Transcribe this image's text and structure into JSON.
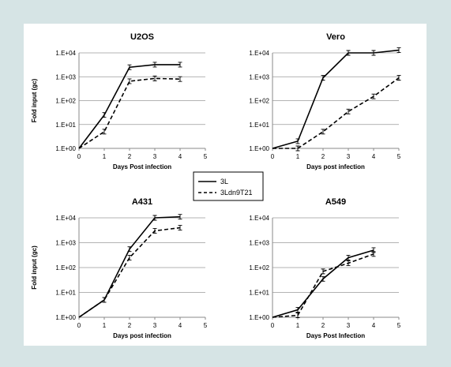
{
  "chart_data": {
    "type": "line",
    "legend": {
      "placement": "center",
      "entries": [
        {
          "name": "3L",
          "style": "solid"
        },
        {
          "name": "3Ldn9T21",
          "style": "dashed"
        }
      ]
    },
    "panels": [
      {
        "title": "U2OS",
        "xlabel": "Days Post infection",
        "ylabel": "Fold input (gc)",
        "y_scale": "log",
        "ylim": [
          1,
          10000
        ],
        "xlim": [
          0,
          5
        ],
        "x_ticks": [
          "0",
          "1",
          "2",
          "3",
          "4",
          "5"
        ],
        "y_ticks": [
          "1.E+00",
          "1.E+01",
          "1.E+02",
          "1.E+03",
          "1.E+04"
        ],
        "grid": true,
        "series": [
          {
            "name": "3L",
            "x": [
              0,
              1,
              2,
              3,
              4
            ],
            "y": [
              1,
              25,
              2500,
              3200,
              3200
            ]
          },
          {
            "name": "3Ldn9T21",
            "x": [
              0,
              1,
              2,
              3,
              4
            ],
            "y": [
              1,
              5,
              650,
              850,
              800
            ]
          }
        ]
      },
      {
        "title": "Vero",
        "xlabel": "Days post infection",
        "ylabel": "",
        "y_scale": "log",
        "ylim": [
          1,
          10000
        ],
        "xlim": [
          0,
          5
        ],
        "x_ticks": [
          "0",
          "1",
          "2",
          "3",
          "4",
          "5"
        ],
        "y_ticks": [
          "1.E+00",
          "1.E+01",
          "1.E+02",
          "1.E+03",
          "1.E+04"
        ],
        "grid": true,
        "series": [
          {
            "name": "3L",
            "x": [
              0,
              1,
              2,
              3,
              4,
              5
            ],
            "y": [
              1,
              2,
              900,
              10000,
              10000,
              13000
            ]
          },
          {
            "name": "3Ldn9T21",
            "x": [
              0,
              1,
              2,
              3,
              4,
              5
            ],
            "y": [
              1,
              1,
              5,
              35,
              150,
              900
            ]
          }
        ]
      },
      {
        "title": "A431",
        "xlabel": "Days post infection",
        "ylabel": "Fold input (gc)",
        "y_scale": "log",
        "ylim": [
          1,
          10000
        ],
        "xlim": [
          0,
          5
        ],
        "x_ticks": [
          "0",
          "1",
          "2",
          "3",
          "4",
          "5"
        ],
        "y_ticks": [
          "1.E+00",
          "1.E+01",
          "1.E+02",
          "1.E+03",
          "1.E+04"
        ],
        "grid": true,
        "series": [
          {
            "name": "3L",
            "x": [
              0,
              1,
              2,
              3,
              4
            ],
            "y": [
              1,
              5,
              550,
              10000,
              11000
            ]
          },
          {
            "name": "3Ldn9T21",
            "x": [
              0,
              1,
              2,
              3,
              4
            ],
            "y": [
              1,
              5,
              250,
              3000,
              4000
            ]
          }
        ]
      },
      {
        "title": "A549",
        "xlabel": "Days Post Infection",
        "ylabel": "",
        "y_scale": "log",
        "ylim": [
          1,
          10000
        ],
        "xlim": [
          0,
          5
        ],
        "x_ticks": [
          "0",
          "1",
          "2",
          "3",
          "4",
          "5"
        ],
        "y_ticks": [
          "1.E+00",
          "1.E+01",
          "1.E+02",
          "1.E+03",
          "1.E+04"
        ],
        "grid": true,
        "series": [
          {
            "name": "3L",
            "x": [
              0,
              1,
              2,
              3,
              4
            ],
            "y": [
              1,
              2,
              35,
              250,
              500
            ]
          },
          {
            "name": "3Ldn9T21",
            "x": [
              0,
              1,
              2,
              3,
              4
            ],
            "y": [
              1,
              1.2,
              70,
              150,
              350
            ]
          }
        ]
      }
    ]
  }
}
